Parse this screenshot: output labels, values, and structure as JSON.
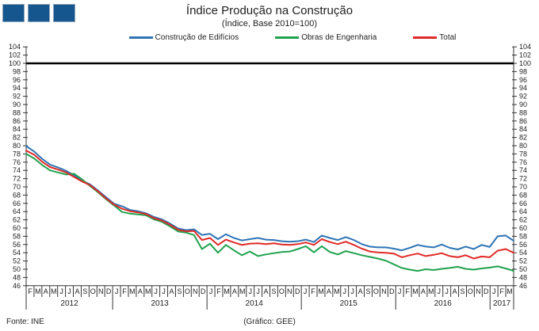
{
  "header": {
    "title": "Índice Produção na Construção",
    "subtitle": "(Índice, Base 2010=100)"
  },
  "legend": [
    {
      "label": "Construção de Edifícios",
      "color": "#2E74B5"
    },
    {
      "label": "Obras de Engenharia",
      "color": "#1FA24E"
    },
    {
      "label": "Total",
      "color": "#DF2A26"
    }
  ],
  "footer": {
    "source": "Fonte:  INE",
    "credit": "(Gráfico:  GEE)"
  },
  "chart_data": {
    "type": "line",
    "title": "Índice Produção na Construção",
    "subtitle": "(Índice, Base 2010=100)",
    "baseline": 100,
    "ylim": [
      46,
      104
    ],
    "ytick_step": 2,
    "grid": false,
    "legend_position": "top",
    "axis_color": "#333333",
    "baseline_color": "#000000",
    "years": [
      {
        "label": "2012",
        "months": [
          "F",
          "M",
          "A",
          "M",
          "J",
          "J",
          "A",
          "S",
          "O",
          "N",
          "D"
        ]
      },
      {
        "label": "2013",
        "months": [
          "J",
          "F",
          "M",
          "A",
          "M",
          "J",
          "J",
          "A",
          "S",
          "O",
          "N",
          "D"
        ]
      },
      {
        "label": "2014",
        "months": [
          "J",
          "F",
          "M",
          "A",
          "M",
          "J",
          "J",
          "A",
          "S",
          "O",
          "N",
          "D"
        ]
      },
      {
        "label": "2015",
        "months": [
          "J",
          "F",
          "M",
          "A",
          "M",
          "J",
          "J",
          "A",
          "S",
          "O",
          "N",
          "D"
        ]
      },
      {
        "label": "2016",
        "months": [
          "J",
          "F",
          "M",
          "A",
          "M",
          "J",
          "J",
          "A",
          "S",
          "O",
          "N",
          "D"
        ]
      },
      {
        "label": "2017",
        "months": [
          "J",
          "F",
          "M"
        ]
      }
    ],
    "series": [
      {
        "name": "Construção de Edifícios",
        "color": "#2E74B5",
        "values": [
          79.9,
          78.6,
          76.8,
          75.4,
          74.7,
          73.9,
          72.8,
          71.5,
          70.6,
          69.1,
          67.5,
          65.9,
          65.3,
          64.4,
          64.1,
          63.6,
          62.7,
          62.1,
          61.1,
          59.9,
          59.5,
          59.7,
          58.3,
          58.6,
          57.3,
          58.5,
          57.6,
          57.0,
          57.3,
          57.6,
          57.2,
          57.1,
          56.8,
          56.7,
          56.8,
          57.2,
          56.6,
          58.2,
          57.6,
          57.1,
          57.8,
          57.1,
          56.1,
          55.5,
          55.3,
          55.3,
          55.0,
          54.6,
          55.2,
          55.9,
          55.5,
          55.3,
          56.0,
          55.2,
          54.8,
          55.5,
          54.9,
          55.9,
          55.4,
          58.0,
          58.2,
          56.9
        ]
      },
      {
        "name": "Obras de Engenharia",
        "color": "#1FA24E",
        "values": [
          78.0,
          76.9,
          75.3,
          74.0,
          73.5,
          73.0,
          73.2,
          71.8,
          70.2,
          68.7,
          67.0,
          65.5,
          63.9,
          63.5,
          63.3,
          63.1,
          62.1,
          61.5,
          60.4,
          59.2,
          58.9,
          58.3,
          54.9,
          56.2,
          54.0,
          55.9,
          54.6,
          53.4,
          54.3,
          53.2,
          53.6,
          53.9,
          54.2,
          54.3,
          54.9,
          55.6,
          54.1,
          55.6,
          54.2,
          53.6,
          54.4,
          53.9,
          53.4,
          53.0,
          52.6,
          52.1,
          51.2,
          50.3,
          49.9,
          49.6,
          50.0,
          49.8,
          50.1,
          50.3,
          50.6,
          50.1,
          49.9,
          50.2,
          50.4,
          50.7,
          50.2,
          49.6
        ]
      },
      {
        "name": "Total",
        "color": "#DF2A26",
        "values": [
          78.8,
          77.8,
          76.1,
          74.8,
          74.2,
          73.5,
          72.4,
          71.3,
          70.4,
          68.9,
          67.2,
          65.7,
          64.7,
          64.1,
          63.8,
          63.4,
          62.4,
          61.8,
          60.8,
          59.6,
          59.2,
          59.3,
          57.1,
          57.6,
          55.9,
          57.2,
          56.5,
          55.9,
          56.2,
          56.3,
          56.1,
          56.3,
          56.0,
          55.9,
          56.1,
          56.5,
          55.9,
          57.3,
          56.6,
          56.1,
          56.7,
          55.9,
          55.0,
          54.3,
          54.1,
          54.0,
          53.8,
          52.9,
          53.4,
          53.8,
          53.2,
          53.5,
          53.9,
          53.2,
          52.9,
          53.4,
          52.6,
          53.1,
          52.9,
          54.5,
          54.9,
          54.0
        ]
      }
    ]
  }
}
